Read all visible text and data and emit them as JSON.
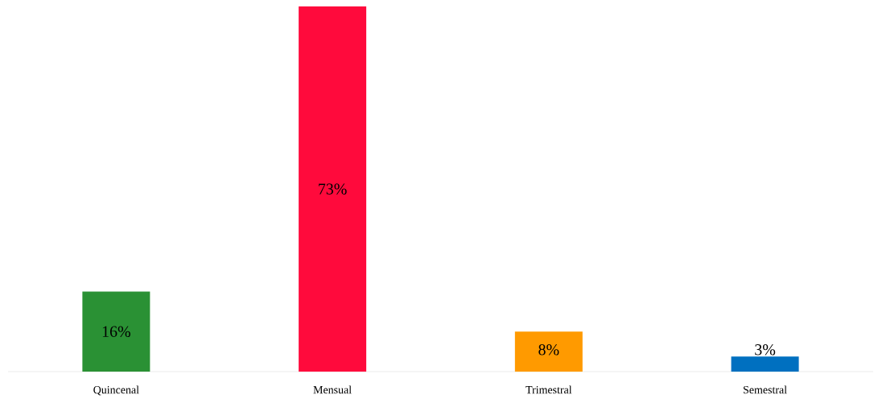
{
  "chart_data": {
    "type": "bar",
    "categories": [
      "Quincenal",
      "Mensual",
      "Trimestral",
      "Semestral"
    ],
    "values": [
      16,
      73,
      8,
      3
    ],
    "colors": [
      "#2a9134",
      "#ff0a3c",
      "#ff9a00",
      "#0070c0"
    ],
    "value_labels": [
      "16%",
      "73%",
      "8%",
      "3%"
    ]
  }
}
